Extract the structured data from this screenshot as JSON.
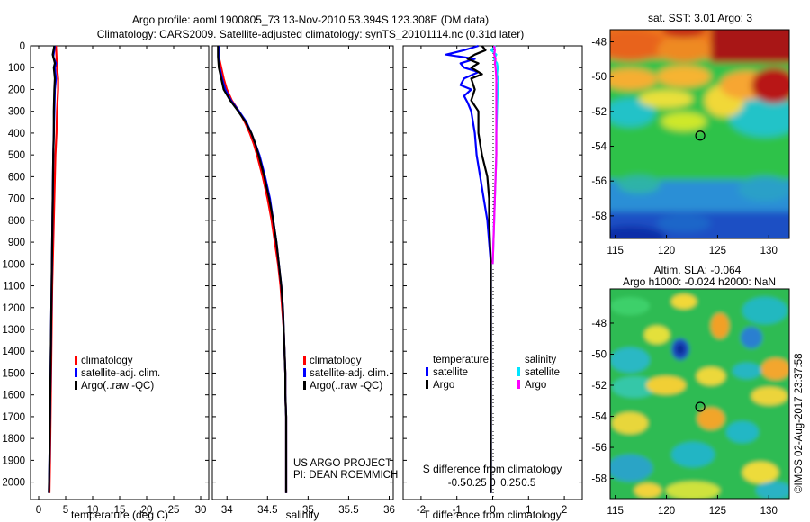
{
  "header": {
    "title_line1": "Argo profile: aoml 1900805_73 13-Nov-2010 53.394S 123.308E (DM data)",
    "title_line2": "Climatology: CARS2009. Satellite-adjusted climatology: synTS_20101114.nc (0.31d later)"
  },
  "colors": {
    "climatology": "#ff0000",
    "satellite": "#0000ff",
    "argo": "#000000",
    "sal_satellite": "#00e5ff",
    "sal_argo": "#ff00ff"
  },
  "depth_ticks": [
    "0",
    "100",
    "200",
    "300",
    "400",
    "500",
    "600",
    "700",
    "800",
    "900",
    "1000",
    "1100",
    "1200",
    "1300",
    "1400",
    "1500",
    "1600",
    "1700",
    "1800",
    "1900",
    "2000"
  ],
  "chart_data": [
    {
      "type": "line",
      "id": "temperature",
      "xlabel": "temperature (deg C)",
      "ylabel": "",
      "xlim": [
        -1.5,
        31.5
      ],
      "ylim": [
        2080,
        0
      ],
      "xticks": [
        "0",
        "5",
        "10",
        "15",
        "20",
        "25",
        "30"
      ],
      "xtick_values": [
        0,
        5,
        10,
        15,
        20,
        25,
        30
      ],
      "legend": [
        "climatology",
        "satellite-adj. clim.",
        "Argo(..raw -QC)"
      ],
      "legend_placement": "lower-middle",
      "series": [
        {
          "name": "climatology",
          "color": "#ff0000",
          "depth": [
            0,
            50,
            100,
            150,
            200,
            300,
            400,
            500,
            700,
            900,
            1100,
            1300,
            1500,
            1700,
            1900,
            2050
          ],
          "values": [
            3.2,
            3.3,
            3.4,
            3.6,
            3.6,
            3.4,
            3.3,
            3.1,
            2.9,
            2.7,
            2.5,
            2.4,
            2.3,
            2.2,
            2.1,
            2.0
          ]
        },
        {
          "name": "satellite-adj. clim.",
          "color": "#0000ff",
          "depth": [
            0,
            50,
            80,
            100,
            150,
            200,
            300,
            400,
            500,
            700,
            900,
            1100,
            1300,
            1500,
            1700,
            1900,
            2050
          ],
          "values": [
            3.0,
            2.7,
            3.2,
            3.0,
            3.2,
            3.0,
            2.9,
            2.8,
            2.7,
            2.6,
            2.5,
            2.4,
            2.3,
            2.2,
            2.1,
            2.0,
            1.9
          ]
        },
        {
          "name": "Argo(..raw -QC)",
          "color": "#000000",
          "depth": [
            0,
            40,
            80,
            100,
            150,
            200,
            300,
            400,
            500,
            700,
            900,
            1100,
            1300,
            1500,
            1700,
            1900,
            2050
          ],
          "values": [
            2.9,
            2.6,
            3.0,
            2.8,
            3.0,
            2.9,
            2.8,
            2.8,
            2.7,
            2.6,
            2.5,
            2.4,
            2.3,
            2.2,
            2.1,
            2.0,
            1.9
          ]
        }
      ]
    },
    {
      "type": "line",
      "id": "salinity",
      "xlabel": "salinity",
      "ylabel": "",
      "xlim": [
        33.82,
        36.05
      ],
      "ylim": [
        2080,
        0
      ],
      "xticks": [
        "34",
        "34.5",
        "35",
        "35.5",
        "36"
      ],
      "xtick_values": [
        34,
        34.5,
        35,
        35.5,
        36
      ],
      "legend": [
        "climatology",
        "satellite-adj. clim.",
        "Argo(..raw -QC)"
      ],
      "legend_placement": "lower-middle",
      "annotations": [
        "US ARGO PROJECT",
        "PI: DEAN ROEMMICH"
      ],
      "series": [
        {
          "name": "climatology",
          "color": "#ff0000",
          "depth": [
            0,
            50,
            100,
            150,
            200,
            250,
            300,
            350,
            400,
            450,
            500,
            600,
            700,
            800,
            900,
            1000,
            1100,
            1200,
            1300,
            1400,
            1500,
            1600,
            1700,
            1800,
            1900,
            2050
          ],
          "values": [
            33.9,
            33.9,
            33.93,
            33.96,
            34.0,
            34.06,
            34.15,
            34.22,
            34.28,
            34.33,
            34.37,
            34.44,
            34.5,
            34.55,
            34.59,
            34.63,
            34.66,
            34.68,
            34.7,
            34.71,
            34.72,
            34.72,
            34.73,
            34.73,
            34.73,
            34.73
          ]
        },
        {
          "name": "satellite-adj. clim.",
          "color": "#0000ff",
          "depth": [
            0,
            50,
            100,
            150,
            200,
            250,
            300,
            350,
            400,
            450,
            500,
            600,
            700,
            800,
            900,
            1000,
            1100,
            1200,
            1300,
            1400,
            1500,
            1600,
            1700,
            1800,
            1900,
            2050
          ],
          "values": [
            33.9,
            33.9,
            33.91,
            33.94,
            33.98,
            34.05,
            34.15,
            34.24,
            34.3,
            34.35,
            34.4,
            34.47,
            34.53,
            34.57,
            34.61,
            34.64,
            34.67,
            34.69,
            34.7,
            34.71,
            34.72,
            34.72,
            34.73,
            34.73,
            34.73,
            34.73
          ]
        },
        {
          "name": "Argo(..raw -QC)",
          "color": "#000000",
          "depth": [
            0,
            50,
            100,
            150,
            200,
            250,
            300,
            350,
            400,
            450,
            500,
            600,
            700,
            800,
            900,
            1000,
            1100,
            1200,
            1300,
            1400,
            1500,
            1600,
            1700,
            1800,
            1900,
            2050
          ],
          "values": [
            33.89,
            33.89,
            33.9,
            33.93,
            33.96,
            34.04,
            34.14,
            34.23,
            34.3,
            34.35,
            34.39,
            34.46,
            34.52,
            34.57,
            34.61,
            34.64,
            34.67,
            34.69,
            34.7,
            34.71,
            34.72,
            34.72,
            34.73,
            34.73,
            34.73,
            34.73
          ]
        }
      ]
    },
    {
      "type": "line",
      "id": "difference",
      "xlabel": "T difference from climatology",
      "xlabel_secondary": "S difference from climatology",
      "ylabel": "",
      "xlim": [
        -2.5,
        2.5
      ],
      "ylim": [
        2080,
        0
      ],
      "xticks": [
        "-2",
        "-1",
        "0",
        "1",
        "2"
      ],
      "xtick_values": [
        -2,
        -1,
        0,
        1,
        2
      ],
      "sticks": [
        "-0.5",
        "-0.25",
        "0",
        "0.25",
        "0.5"
      ],
      "stick_values": [
        -0.5,
        -0.25,
        0,
        0.25,
        0.5
      ],
      "legend_temperature": {
        "header": "temperature",
        "items": [
          "satellite",
          "Argo"
        ]
      },
      "legend_salinity": {
        "header": "salinity",
        "items": [
          "satellite",
          "Argo"
        ]
      },
      "series": [
        {
          "name": "satellite",
          "group": "temperature",
          "color": "#0000ff",
          "depth": [
            0,
            20,
            40,
            60,
            80,
            100,
            120,
            150,
            180,
            200,
            230,
            260,
            300,
            400,
            500,
            600,
            700,
            800,
            1000,
            1200,
            1500,
            1800,
            2050
          ],
          "values": [
            -0.4,
            -0.8,
            -1.3,
            -0.5,
            -0.9,
            -0.8,
            -0.4,
            -0.8,
            -0.9,
            -0.6,
            -0.8,
            -0.7,
            -0.6,
            -0.5,
            -0.45,
            -0.35,
            -0.25,
            -0.15,
            -0.05,
            -0.05,
            -0.05,
            -0.05,
            -0.05
          ]
        },
        {
          "name": "Argo",
          "group": "temperature",
          "color": "#000000",
          "depth": [
            0,
            20,
            40,
            60,
            80,
            100,
            130,
            150,
            200,
            250,
            300,
            400,
            500,
            600,
            700,
            800,
            1000,
            1200,
            1500,
            1800,
            2050
          ],
          "values": [
            -0.3,
            -0.2,
            -0.5,
            -0.7,
            -0.4,
            -0.6,
            -0.3,
            -0.6,
            -0.5,
            -0.6,
            -0.4,
            -0.4,
            -0.3,
            -0.15,
            -0.1,
            -0.1,
            -0.05,
            -0.05,
            -0.05,
            -0.05,
            -0.05
          ]
        },
        {
          "name": "satellite",
          "group": "salinity",
          "color": "#00e5ff",
          "depth": [
            0,
            20,
            40,
            60,
            80,
            100,
            130,
            160,
            200,
            300,
            400,
            500,
            600,
            700,
            800,
            900,
            1000
          ],
          "values": [
            0.04,
            -0.02,
            0.05,
            0.02,
            0.06,
            0.07,
            0.06,
            0.08,
            0.07,
            0.06,
            0.05,
            0.05,
            0.04,
            0.03,
            0.02,
            0.01,
            0.0
          ]
        },
        {
          "name": "Argo",
          "group": "salinity",
          "color": "#ff00ff",
          "depth": [
            0,
            20,
            40,
            60,
            80,
            100,
            150,
            200,
            300,
            400,
            500,
            600,
            700,
            800,
            900,
            1000
          ],
          "values": [
            0.02,
            0.03,
            0.02,
            0.04,
            0.03,
            0.04,
            0.05,
            0.05,
            0.05,
            0.05,
            0.05,
            0.04,
            0.03,
            0.02,
            0.01,
            0.0
          ]
        }
      ]
    },
    {
      "type": "heatmap",
      "id": "sst_map",
      "title": "sat. SST: 3.01  Argo: 3",
      "xlim": [
        114.5,
        132
      ],
      "ylim": [
        -59.3,
        -47.3
      ],
      "xticks": [
        "115",
        "120",
        "125",
        "130"
      ],
      "xtick_values": [
        115,
        120,
        125,
        130
      ],
      "yticks": [
        "-48",
        "-50",
        "-52",
        "-54",
        "-56",
        "-58"
      ],
      "ytick_values": [
        -48,
        -50,
        -52,
        -54,
        -56,
        -58
      ],
      "marker": {
        "lon": 123.3,
        "lat": -53.39
      }
    },
    {
      "type": "heatmap",
      "id": "sla_map",
      "title_line1": "Altim. SLA: -0.064",
      "title_line2": "Argo h1000: -0.024 h2000: NaN",
      "xlim": [
        114.5,
        132
      ],
      "ylim": [
        -59.3,
        -45.8
      ],
      "xticks": [
        "115",
        "120",
        "125",
        "130"
      ],
      "xtick_values": [
        115,
        120,
        125,
        130
      ],
      "yticks": [
        "-48",
        "-50",
        "-52",
        "-54",
        "-56",
        "-58"
      ],
      "ytick_values": [
        -48,
        -50,
        -52,
        -54,
        -56,
        -58
      ],
      "marker": {
        "lon": 123.3,
        "lat": -53.39
      }
    }
  ],
  "footer": {
    "side_stamp": "©IMOS 02-Aug-2017 23:37:58"
  }
}
